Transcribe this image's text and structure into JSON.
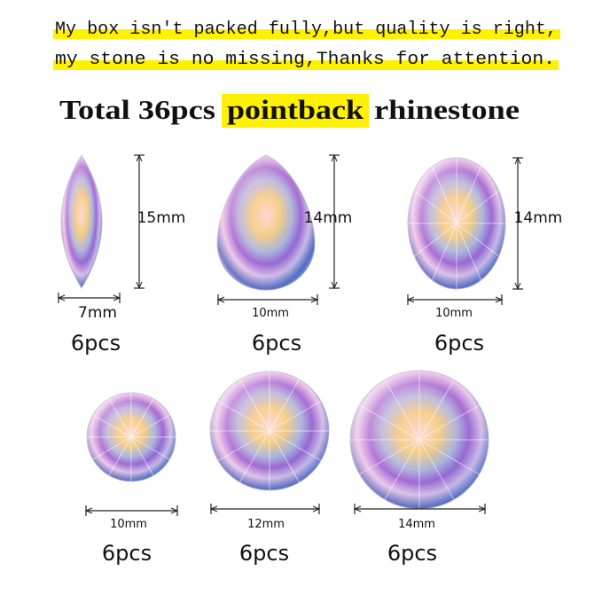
{
  "notice": {
    "lines": [
      "My box isn't packed fully,but quality is right,",
      "my stone is no missing,Thanks for attention."
    ]
  },
  "headline": {
    "prefix": "Total 36pcs",
    "highlight": "pointback",
    "suffix": "rhinestone"
  },
  "items": [
    {
      "shape": "marquise",
      "width": "7mm",
      "height": "15mm",
      "count": "6pcs"
    },
    {
      "shape": "pear",
      "width": "10mm",
      "height": "14mm",
      "count": "6pcs"
    },
    {
      "shape": "oval",
      "width": "10mm",
      "height": "14mm",
      "count": "6pcs"
    },
    {
      "shape": "round",
      "width": "10mm",
      "count": "6pcs"
    },
    {
      "shape": "round",
      "width": "12mm",
      "count": "6pcs"
    },
    {
      "shape": "round",
      "width": "14mm",
      "count": "6pcs"
    }
  ]
}
